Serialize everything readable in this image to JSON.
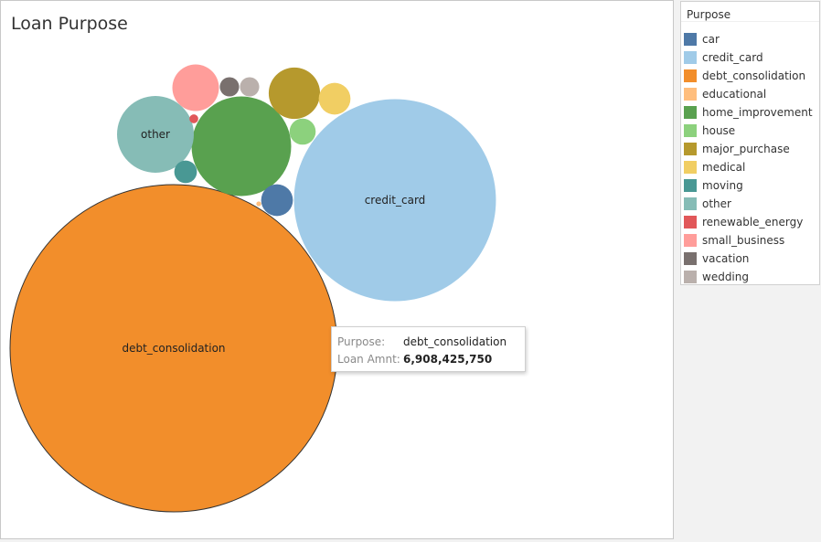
{
  "title": "Loan Purpose",
  "legend": {
    "title": "Purpose",
    "items": [
      {
        "label": "car",
        "color": "#4e79a7"
      },
      {
        "label": "credit_card",
        "color": "#a0cbe8"
      },
      {
        "label": "debt_consolidation",
        "color": "#f28e2b"
      },
      {
        "label": "educational",
        "color": "#ffbe7d"
      },
      {
        "label": "home_improvement",
        "color": "#59a14f"
      },
      {
        "label": "house",
        "color": "#8cd17d"
      },
      {
        "label": "major_purchase",
        "color": "#b6992d"
      },
      {
        "label": "medical",
        "color": "#f1ce63"
      },
      {
        "label": "moving",
        "color": "#499894"
      },
      {
        "label": "other",
        "color": "#86bcb6"
      },
      {
        "label": "renewable_energy",
        "color": "#e15759"
      },
      {
        "label": "small_business",
        "color": "#ff9d9a"
      },
      {
        "label": "vacation",
        "color": "#79706e"
      },
      {
        "label": "wedding",
        "color": "#bab0ac"
      }
    ]
  },
  "tooltip": {
    "purpose_key": "Purpose:",
    "purpose_value": "debt_consolidation",
    "amount_key": "Loan Amnt:",
    "amount_value": "6,908,425,750"
  },
  "chart_data": {
    "type": "bubble",
    "title": "Loan Purpose",
    "measure": "Loan Amnt",
    "dimension": "Purpose",
    "values": [
      {
        "name": "debt_consolidation",
        "value": 6908425750,
        "label": "debt_consolidation"
      },
      {
        "name": "credit_card",
        "value": 2630000000,
        "label": "credit_card"
      },
      {
        "name": "home_improvement",
        "value": 640000000,
        "label": ""
      },
      {
        "name": "other",
        "value": 380000000,
        "label": "other"
      },
      {
        "name": "major_purchase",
        "value": 170000000,
        "label": ""
      },
      {
        "name": "small_business",
        "value": 140000000,
        "label": ""
      },
      {
        "name": "medical",
        "value": 65000000,
        "label": ""
      },
      {
        "name": "car",
        "value": 65000000,
        "label": ""
      },
      {
        "name": "house",
        "value": 44000000,
        "label": ""
      },
      {
        "name": "moving",
        "value": 33000000,
        "label": ""
      },
      {
        "name": "vacation",
        "value": 24000000,
        "label": ""
      },
      {
        "name": "wedding",
        "value": 24000000,
        "label": ""
      },
      {
        "name": "renewable_energy",
        "value": 5000000,
        "label": ""
      },
      {
        "name": "educational",
        "value": 1500000,
        "label": ""
      }
    ]
  }
}
